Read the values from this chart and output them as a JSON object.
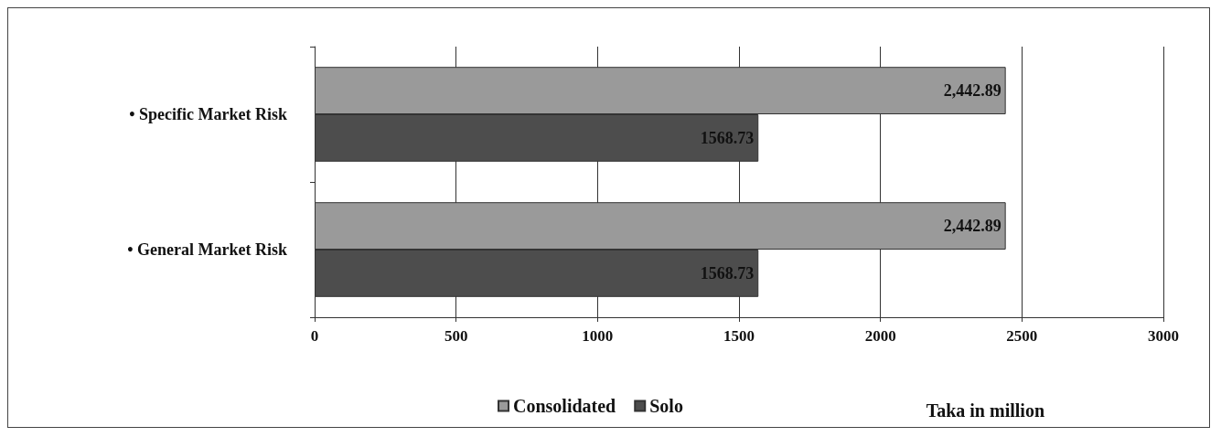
{
  "chart_data": {
    "type": "bar",
    "orientation": "horizontal",
    "xlabel": "Taka in million",
    "categories": [
      "• Specific Market Risk",
      "• General Market Risk"
    ],
    "series": [
      {
        "name": "Consolidated",
        "color": "#9a9a9a",
        "values": [
          2442.89,
          2442.89
        ],
        "value_labels": [
          "2,442.89",
          "2,442.89"
        ]
      },
      {
        "name": "Solo",
        "color": "#4d4d4d",
        "values": [
          1568.73,
          1568.73
        ],
        "value_labels": [
          "1568.73",
          "1568.73"
        ]
      }
    ],
    "xlim": [
      0,
      3000
    ],
    "xticks": [
      0,
      500,
      1000,
      1500,
      2000,
      2500,
      3000
    ],
    "grid": "x",
    "legend": "bottom"
  }
}
